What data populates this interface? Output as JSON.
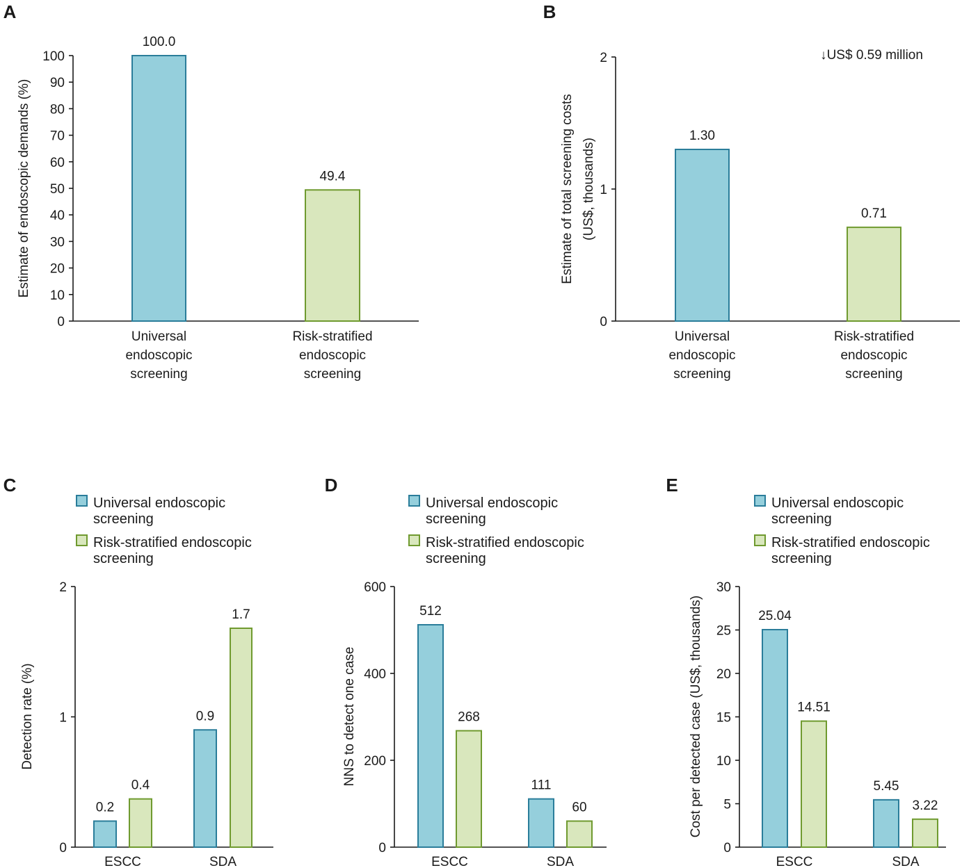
{
  "chart_data": [
    {
      "panel_label": "A",
      "type": "bar",
      "categories": [
        [
          "Universal",
          "endoscopic",
          "screening"
        ],
        [
          "Risk-stratified",
          "endoscopic",
          "screening"
        ]
      ],
      "values": [
        100.0,
        49.4
      ],
      "value_labels": [
        "100.0",
        "49.4"
      ],
      "xlabel": "",
      "ylabel": "Estimate of endoscopic demands (%)",
      "ylim": [
        0,
        100
      ],
      "yticks": [
        0,
        10,
        20,
        30,
        40,
        50,
        60,
        70,
        80,
        90,
        100
      ],
      "annotation": "",
      "grid": false
    },
    {
      "panel_label": "B",
      "type": "bar",
      "categories": [
        [
          "Universal",
          "endoscopic",
          "screening"
        ],
        [
          "Risk-stratified",
          "endoscopic",
          "screening"
        ]
      ],
      "values": [
        1.3,
        0.71
      ],
      "value_labels": [
        "1.30",
        "0.71"
      ],
      "xlabel": "",
      "ylabel": [
        "Estimate of total screening costs",
        "(US$, thousands)"
      ],
      "ylim": [
        0,
        2
      ],
      "yticks": [
        0,
        1,
        2
      ],
      "annotation": "↓US$ 0.59 million",
      "grid": false
    },
    {
      "panel_label": "C",
      "type": "bar",
      "categories": [
        "ESCC",
        "SDA"
      ],
      "series": [
        {
          "name": [
            "Universal endoscopic",
            "screening"
          ],
          "values": [
            0.2,
            0.9
          ],
          "labels": [
            "0.2",
            "0.9"
          ],
          "color_key": "universal"
        },
        {
          "name": [
            "Risk-stratified endoscopic",
            "screening"
          ],
          "values": [
            0.37,
            1.68
          ],
          "labels": [
            "0.4",
            "1.7"
          ],
          "color_key": "risk"
        }
      ],
      "xlabel": "",
      "ylabel": "Detection rate (%)",
      "ylim": [
        0,
        2
      ],
      "yticks": [
        0,
        1,
        2
      ],
      "legend": "top-left",
      "grid": false
    },
    {
      "panel_label": "D",
      "type": "bar",
      "categories": [
        "ESCC",
        "SDA"
      ],
      "series": [
        {
          "name": [
            "Universal endoscopic",
            "screening"
          ],
          "values": [
            512,
            111
          ],
          "labels": [
            "512",
            "111"
          ],
          "color_key": "universal"
        },
        {
          "name": [
            "Risk-stratified endoscopic",
            "screening"
          ],
          "values": [
            268,
            60
          ],
          "labels": [
            "268",
            "60"
          ],
          "color_key": "risk"
        }
      ],
      "xlabel": "",
      "ylabel": "NNS to detect one case",
      "ylim": [
        0,
        600
      ],
      "yticks": [
        0,
        200,
        400,
        600
      ],
      "legend": "top-left",
      "grid": false
    },
    {
      "panel_label": "E",
      "type": "bar",
      "categories": [
        "ESCC",
        "SDA"
      ],
      "series": [
        {
          "name": [
            "Universal endoscopic",
            "screening"
          ],
          "values": [
            25.04,
            5.45
          ],
          "labels": [
            "25.04",
            "5.45"
          ],
          "color_key": "universal"
        },
        {
          "name": [
            "Risk-stratified endoscopic",
            "screening"
          ],
          "values": [
            14.51,
            3.22
          ],
          "labels": [
            "14.51",
            "3.22"
          ],
          "color_key": "risk"
        }
      ],
      "xlabel": "",
      "ylabel": "Cost per detected case (US$, thousands)",
      "ylim": [
        0,
        30
      ],
      "yticks": [
        0,
        5,
        10,
        15,
        20,
        25,
        30
      ],
      "legend": "top-left",
      "grid": false
    }
  ],
  "colors": {
    "universal_fill": "#95cfdc",
    "universal_stroke": "#2a7d9a",
    "risk_fill": "#d9e7bd",
    "risk_stroke": "#6f9a2f",
    "axis": "#1a1a1a"
  }
}
